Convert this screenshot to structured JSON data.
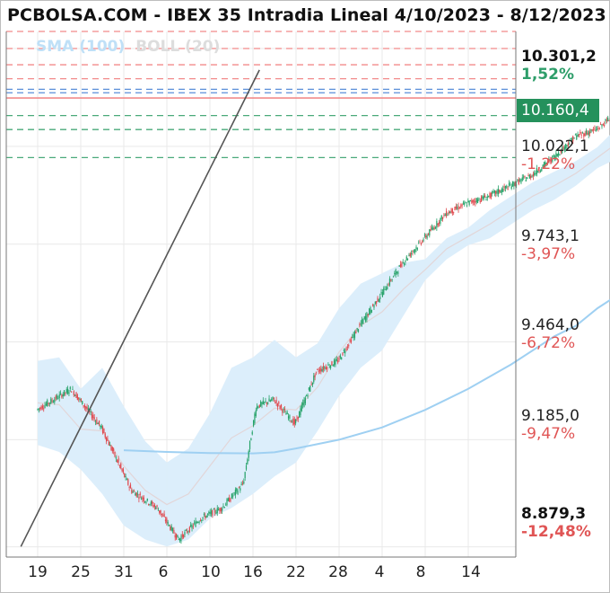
{
  "chart_data": {
    "type": "candlestick",
    "title": "PCBOLSA.COM - IBEX 35 Intradia Lineal 4/10/2023 - 8/12/2023",
    "legend": {
      "sma": "SMA (100)",
      "boll": "BOLL (20)"
    },
    "price_axis": {
      "labels": [
        {
          "price": "10.301,2",
          "pct": "1,52%",
          "pct_color": "#2e9e6a",
          "bold": true
        },
        {
          "price": "10.022,1",
          "pct": "-1,22%",
          "pct_color": "#e05555",
          "bold": false
        },
        {
          "price": "9.743,1",
          "pct": "-3,97%",
          "pct_color": "#e05555",
          "bold": false
        },
        {
          "price": "9.464,0",
          "pct": "-6,72%",
          "pct_color": "#e05555",
          "bold": false
        },
        {
          "price": "9.185,0",
          "pct": "-9,47%",
          "pct_color": "#e05555",
          "bold": false
        },
        {
          "price": "8.879,3",
          "pct": "-12,48%",
          "pct_color": "#e05555",
          "bold": true
        }
      ],
      "current_price": "10.160,4",
      "current_price_color": "#25915c"
    },
    "x_ticks": [
      "19",
      "25",
      "31",
      "6",
      "10",
      "16",
      "22",
      "28",
      "4",
      "8",
      "14"
    ],
    "ylim": [
      8850,
      10350
    ],
    "reference_levels": {
      "red_dashed": [
        10350,
        10301.2,
        10255,
        10215
      ],
      "red_solid": 10160,
      "blue_dashed": [
        10185,
        10175
      ],
      "green_dashed": [
        10110,
        10070,
        9990
      ]
    },
    "trendlines": {
      "support": {
        "from": [
          "29",
          8880
        ],
        "to": [
          "10",
          10240
        ]
      },
      "projection": {
        "from": [
          "21",
          9760
        ],
        "to": [
          "12",
          10300
        ]
      }
    },
    "colors": {
      "up": "#26a269",
      "down": "#e0474c",
      "sma": "#9fd0f2",
      "band": "#daedfb",
      "reference_red": "#f28b8b",
      "reference_green": "#4aa97a",
      "reference_blue": "#5b8fd9"
    },
    "series": {
      "sma_100": [
        [
          2.0,
          9155
        ],
        [
          3.0,
          9150
        ],
        [
          4.0,
          9147
        ],
        [
          5.0,
          9146
        ],
        [
          5.5,
          9149
        ],
        [
          6.0,
          9160
        ],
        [
          7.0,
          9185
        ],
        [
          8.0,
          9220
        ],
        [
          9.0,
          9270
        ],
        [
          10.0,
          9330
        ],
        [
          11.0,
          9400
        ],
        [
          12.0,
          9480
        ],
        [
          12.5,
          9510
        ],
        [
          13.0,
          9560
        ],
        [
          13.5,
          9600
        ],
        [
          14.0,
          9640
        ],
        [
          14.5,
          9700
        ],
        [
          15.0,
          9745
        ],
        [
          15.5,
          9780
        ],
        [
          15.85,
          9800
        ]
      ],
      "boll_upper": [
        [
          0.0,
          9410
        ],
        [
          0.5,
          9420
        ],
        [
          1.0,
          9330
        ],
        [
          1.5,
          9390
        ],
        [
          2.0,
          9280
        ],
        [
          2.5,
          9180
        ],
        [
          3.0,
          9120
        ],
        [
          3.5,
          9160
        ],
        [
          4.0,
          9260
        ],
        [
          4.5,
          9390
        ],
        [
          5.0,
          9420
        ],
        [
          5.5,
          9470
        ],
        [
          6.0,
          9420
        ],
        [
          6.5,
          9460
        ],
        [
          7.0,
          9560
        ],
        [
          7.5,
          9630
        ],
        [
          8.0,
          9660
        ],
        [
          8.5,
          9690
        ],
        [
          9.0,
          9700
        ],
        [
          9.5,
          9760
        ],
        [
          10.0,
          9790
        ],
        [
          10.5,
          9840
        ],
        [
          11.0,
          9880
        ],
        [
          11.5,
          9920
        ],
        [
          12.0,
          9950
        ],
        [
          12.5,
          9980
        ],
        [
          13.0,
          10020
        ],
        [
          13.5,
          10080
        ],
        [
          14.0,
          10120
        ],
        [
          14.5,
          10180
        ],
        [
          15.0,
          10250
        ],
        [
          15.5,
          10285
        ],
        [
          15.85,
          10270
        ]
      ],
      "boll_lower": [
        [
          0.0,
          9170
        ],
        [
          0.5,
          9150
        ],
        [
          1.0,
          9100
        ],
        [
          1.5,
          9030
        ],
        [
          2.0,
          8940
        ],
        [
          2.5,
          8900
        ],
        [
          3.0,
          8880
        ],
        [
          3.5,
          8900
        ],
        [
          4.0,
          8960
        ],
        [
          4.5,
          8990
        ],
        [
          5.0,
          9030
        ],
        [
          5.5,
          9080
        ],
        [
          6.0,
          9120
        ],
        [
          6.5,
          9210
        ],
        [
          7.0,
          9310
        ],
        [
          7.5,
          9390
        ],
        [
          8.0,
          9440
        ],
        [
          8.5,
          9540
        ],
        [
          9.0,
          9640
        ],
        [
          9.5,
          9700
        ],
        [
          10.0,
          9740
        ],
        [
          10.5,
          9760
        ],
        [
          11.0,
          9800
        ],
        [
          11.5,
          9840
        ],
        [
          12.0,
          9870
        ],
        [
          12.5,
          9910
        ],
        [
          13.0,
          9960
        ],
        [
          13.5,
          9990
        ],
        [
          14.0,
          10040
        ],
        [
          14.5,
          10090
        ],
        [
          15.0,
          10140
        ],
        [
          15.5,
          10165
        ],
        [
          15.85,
          10170
        ]
      ],
      "path_points": [
        [
          0.0,
          9270
        ],
        [
          0.8,
          9330
        ],
        [
          1.5,
          9220
        ],
        [
          2.2,
          9040
        ],
        [
          2.8,
          8990
        ],
        [
          3.3,
          8900
        ],
        [
          3.8,
          8960
        ],
        [
          4.3,
          8990
        ],
        [
          4.8,
          9060
        ],
        [
          5.1,
          9280
        ],
        [
          5.5,
          9300
        ],
        [
          6.0,
          9230
        ],
        [
          6.5,
          9380
        ],
        [
          7.0,
          9410
        ],
        [
          7.5,
          9510
        ],
        [
          8.0,
          9600
        ],
        [
          8.5,
          9690
        ],
        [
          9.0,
          9760
        ],
        [
          9.5,
          9830
        ],
        [
          10.0,
          9860
        ],
        [
          10.5,
          9880
        ],
        [
          11.0,
          9910
        ],
        [
          11.5,
          9940
        ],
        [
          12.0,
          9990
        ],
        [
          12.5,
          10050
        ],
        [
          13.0,
          10070
        ],
        [
          13.5,
          10120
        ],
        [
          14.0,
          10150
        ],
        [
          14.5,
          10210
        ],
        [
          15.0,
          10270
        ],
        [
          15.3,
          10310
        ],
        [
          15.55,
          10200
        ],
        [
          15.75,
          10230
        ]
      ],
      "volume_spike_x": 15.7
    }
  }
}
